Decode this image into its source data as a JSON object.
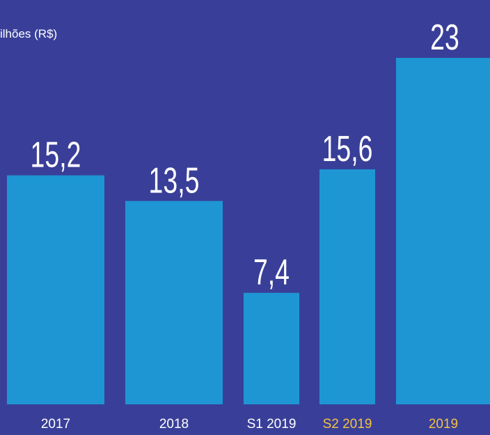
{
  "chart_data": {
    "type": "bar",
    "title": "ilhões (R$)",
    "categories": [
      "2017",
      "2018",
      "S1 2019",
      "S2 2019",
      "2019"
    ],
    "values": [
      15.2,
      13.5,
      7.4,
      15.6,
      23
    ],
    "value_labels": [
      "15,2",
      "13,5",
      "7,4",
      "15,6",
      "23"
    ],
    "color": "#1e96d4",
    "category_colors": [
      "#ffffff",
      "#ffffff",
      "#ffffff",
      "#f5c242",
      "#f5c242"
    ]
  }
}
